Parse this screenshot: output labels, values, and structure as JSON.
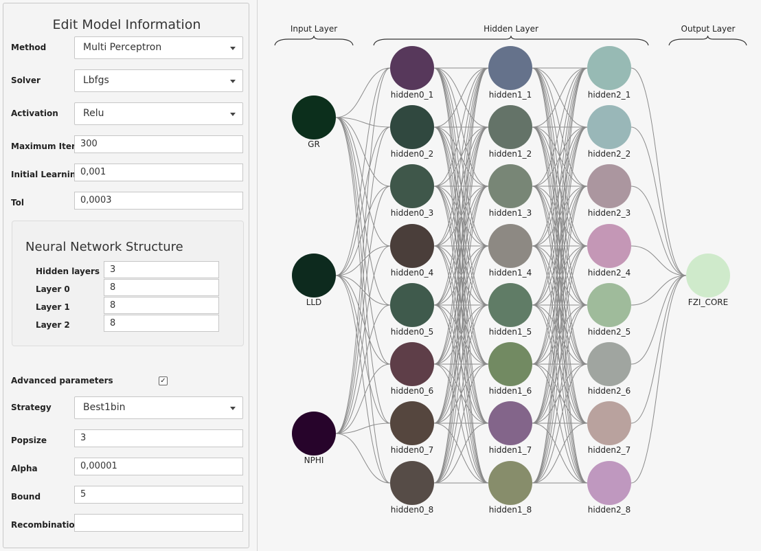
{
  "form": {
    "title": "Edit Model Information",
    "method": {
      "label": "Method",
      "value": "Multi Perceptron"
    },
    "solver": {
      "label": "Solver",
      "value": "Lbfgs"
    },
    "activation": {
      "label": "Activation",
      "value": "Relu"
    },
    "max_iter": {
      "label": "Maximum Iterat",
      "value": "300"
    },
    "learning_rate": {
      "label": "Initial Learning R",
      "value": "0,001"
    },
    "tol": {
      "label": "Tol",
      "value": "0,0003"
    },
    "nn_structure": {
      "title": "Neural Network Structure",
      "hidden_layers": {
        "label": "Hidden layers",
        "value": "3"
      },
      "layer0": {
        "label": "Layer 0",
        "value": "8"
      },
      "layer1": {
        "label": "Layer 1",
        "value": "8"
      },
      "layer2": {
        "label": "Layer 2",
        "value": "8"
      }
    },
    "advanced": {
      "label": "Advanced parameters",
      "checked": true
    },
    "strategy": {
      "label": "Strategy",
      "value": "Best1bin"
    },
    "popsize": {
      "label": "Popsize",
      "value": "3"
    },
    "alpha": {
      "label": "Alpha",
      "value": "0,00001"
    },
    "bound": {
      "label": "Bound",
      "value": "5"
    },
    "recombination": {
      "label": "Recombination",
      "value": ""
    }
  },
  "network": {
    "layer_titles": {
      "input": "Input Layer",
      "hidden": "Hidden Layer",
      "output": "Output Layer"
    },
    "input_nodes": [
      {
        "label": "GR",
        "color": "#0c2f1c"
      },
      {
        "label": "LLD",
        "color": "#0d2a1e"
      },
      {
        "label": "NPHI",
        "color": "#27042b"
      }
    ],
    "hidden_layers": [
      [
        {
          "label": "hidden0_1",
          "color": "#57385b"
        },
        {
          "label": "hidden0_2",
          "color": "#30483f"
        },
        {
          "label": "hidden0_3",
          "color": "#3f574a"
        },
        {
          "label": "hidden0_4",
          "color": "#4a3e3a"
        },
        {
          "label": "hidden0_5",
          "color": "#3f5a4c"
        },
        {
          "label": "hidden0_6",
          "color": "#5e3e48"
        },
        {
          "label": "hidden0_7",
          "color": "#55463e"
        },
        {
          "label": "hidden0_8",
          "color": "#564c47"
        }
      ],
      [
        {
          "label": "hidden1_1",
          "color": "#65728b"
        },
        {
          "label": "hidden1_2",
          "color": "#647368"
        },
        {
          "label": "hidden1_3",
          "color": "#788676"
        },
        {
          "label": "hidden1_4",
          "color": "#8d8983"
        },
        {
          "label": "hidden1_5",
          "color": "#607c66"
        },
        {
          "label": "hidden1_6",
          "color": "#728a62"
        },
        {
          "label": "hidden1_7",
          "color": "#83658a"
        },
        {
          "label": "hidden1_8",
          "color": "#878d6b"
        }
      ],
      [
        {
          "label": "hidden2_1",
          "color": "#97bab4"
        },
        {
          "label": "hidden2_2",
          "color": "#99b7b8"
        },
        {
          "label": "hidden2_3",
          "color": "#ab969f"
        },
        {
          "label": "hidden2_4",
          "color": "#c497b6"
        },
        {
          "label": "hidden2_5",
          "color": "#9fbb9b"
        },
        {
          "label": "hidden2_6",
          "color": "#a0a5a0"
        },
        {
          "label": "hidden2_7",
          "color": "#b9a29e"
        },
        {
          "label": "hidden2_8",
          "color": "#bf98bf"
        }
      ]
    ],
    "output_nodes": [
      {
        "label": "FZI_CORE",
        "color": "#cfeacb"
      }
    ]
  }
}
